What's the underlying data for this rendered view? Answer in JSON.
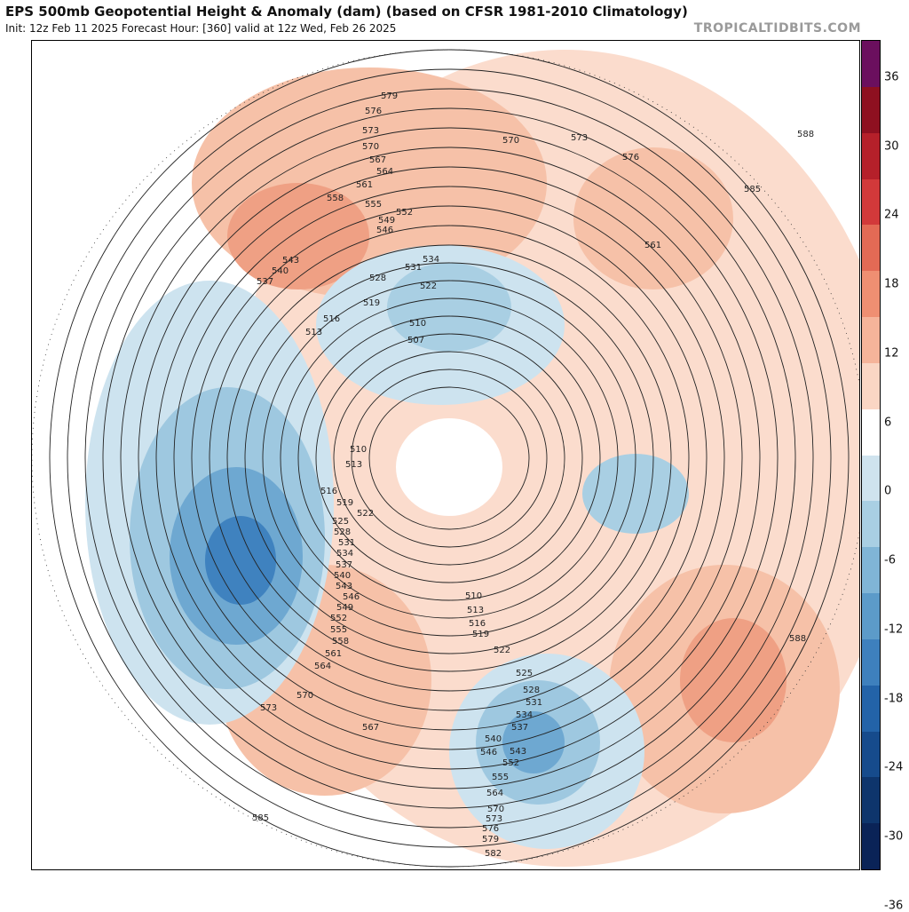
{
  "header": {
    "title": "EPS 500mb Geopotential Height & Anomaly (dam) (based on CFSR 1981-2010 Climatology)",
    "subtitle": "Init: 12z Feb 11 2025   Forecast Hour: [360]   valid at 12z Wed, Feb 26 2025",
    "site": "TROPICALTIDBITS.COM"
  },
  "colorbar": {
    "labels": [
      "36",
      "30",
      "24",
      "18",
      "12",
      "6",
      "0",
      "-6",
      "-12",
      "-18",
      "-24",
      "-30",
      "-36"
    ],
    "colors": [
      "#6b0f5e",
      "#8e1020",
      "#b5202a",
      "#d2393a",
      "#e36a55",
      "#ef8f72",
      "#f5b49a",
      "#fad6c4",
      "#ffffff",
      "#cfe3ee",
      "#a9cfe3",
      "#80b5d6",
      "#5c9bc9",
      "#3e80bd",
      "#2363a8",
      "#164b8c",
      "#0e356c",
      "#0a2357"
    ]
  },
  "map": {
    "contour_labels": [
      "579",
      "576",
      "573",
      "570",
      "567",
      "564",
      "561",
      "558",
      "555",
      "552",
      "549",
      "546",
      "543",
      "540",
      "537",
      "534",
      "531",
      "528",
      "525",
      "522",
      "519",
      "516",
      "513",
      "510",
      "507",
      "588",
      "585",
      "582"
    ]
  }
}
